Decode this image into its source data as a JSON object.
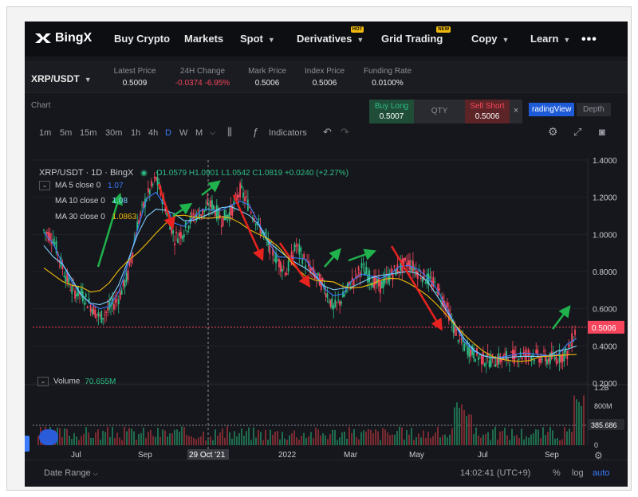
{
  "nav": {
    "brand": "BingX",
    "items": [
      {
        "label": "Buy Crypto",
        "caret": false,
        "badge": ""
      },
      {
        "label": "Markets",
        "caret": false,
        "badge": ""
      },
      {
        "label": "Spot",
        "caret": true,
        "badge": ""
      },
      {
        "label": "Derivatives",
        "caret": true,
        "badge": "HOT"
      },
      {
        "label": "Grid Trading",
        "caret": false,
        "badge": "NEW"
      },
      {
        "label": "Copy",
        "caret": true,
        "badge": ""
      },
      {
        "label": "Learn",
        "caret": true,
        "badge": ""
      }
    ],
    "more": "•••"
  },
  "ticker": {
    "pair": "XRP/USDT",
    "stats": [
      {
        "label": "Latest Price",
        "value": "0.5009",
        "color": "#e8e8e8"
      },
      {
        "label": "24H Change",
        "value": "-0.0374 -6.95%",
        "color": "#f6465d"
      },
      {
        "label": "Mark Price",
        "value": "0.5006",
        "color": "#e8e8e8"
      },
      {
        "label": "Index Price",
        "value": "0.5006",
        "color": "#e8e8e8"
      },
      {
        "label": "Funding Rate",
        "value": "0.0100%",
        "color": "#e8e8e8"
      }
    ]
  },
  "panel": {
    "title": "Chart",
    "buy_long_label": "Buy Long",
    "buy_long_price": "0.5007",
    "qty_label": "QTY",
    "sell_short_label": "Sell Short",
    "sell_short_price": "0.5006",
    "close": "×",
    "tab_tradingview": "radingView",
    "tab_depth": "Depth"
  },
  "toolbar": {
    "timeframes": [
      "1m",
      "5m",
      "15m",
      "30m",
      "1h",
      "4h",
      "D",
      "W",
      "M"
    ],
    "active": "D",
    "indicators": "Indicators"
  },
  "chart_data": {
    "type": "line",
    "header": {
      "symbol": "XRP/USDT · 1D · BingX",
      "o": "O1.0579",
      "h": "H1.0901",
      "l": "L1.0542",
      "c": "C1.0819",
      "chg": "+0.0240 (+2.27%)"
    },
    "ma": [
      {
        "name": "MA 5 close 0",
        "value": "1.07",
        "color": "#3a7bfd"
      },
      {
        "name": "MA 10 close 0",
        "value": "1.08",
        "color": "#7fd3ff"
      },
      {
        "name": "MA 30 close 0",
        "value": "1.0863",
        "color": "#f0b90b"
      }
    ],
    "y_ticks": [
      "1.4000",
      "1.2000",
      "1.0000",
      "0.8000",
      "0.6000",
      "0.4000",
      "0.2000"
    ],
    "ylim": [
      0.2,
      1.4
    ],
    "current_price": "0.5006",
    "current_price_value": 0.5006,
    "x_ticks": [
      "Jul",
      "Sep",
      "29 Oct '21",
      "2022",
      "Mar",
      "May",
      "Jul",
      "Sep"
    ],
    "price_series": [
      1.02,
      0.98,
      0.82,
      0.7,
      0.68,
      0.62,
      0.55,
      0.6,
      0.66,
      0.78,
      1.05,
      1.2,
      1.3,
      1.15,
      0.98,
      1.02,
      1.1,
      1.12,
      1.16,
      1.08,
      1.12,
      1.24,
      1.15,
      1.05,
      0.95,
      0.86,
      0.8,
      0.94,
      0.85,
      0.78,
      0.72,
      0.6,
      0.66,
      0.75,
      0.82,
      0.76,
      0.72,
      0.78,
      0.82,
      0.85,
      0.8,
      0.76,
      0.72,
      0.62,
      0.48,
      0.4,
      0.36,
      0.33,
      0.32,
      0.33,
      0.34,
      0.35,
      0.36,
      0.34,
      0.33,
      0.34,
      0.36,
      0.5
    ],
    "volume": {
      "label": "Volume",
      "value": "70.655M",
      "y_ticks": [
        "1.2B",
        "800M",
        "0"
      ],
      "last": "385.686"
    }
  },
  "footer": {
    "date_range": "Date Range",
    "time": "14:02:41 (UTC+9)",
    "percent": "%",
    "log": "log",
    "auto": "auto"
  },
  "colors": {
    "up": "#2ebd85",
    "down": "#f6465d",
    "accent": "#3a7bfd",
    "arrow_up": "#20b24c",
    "arrow_down": "#e8231f"
  }
}
